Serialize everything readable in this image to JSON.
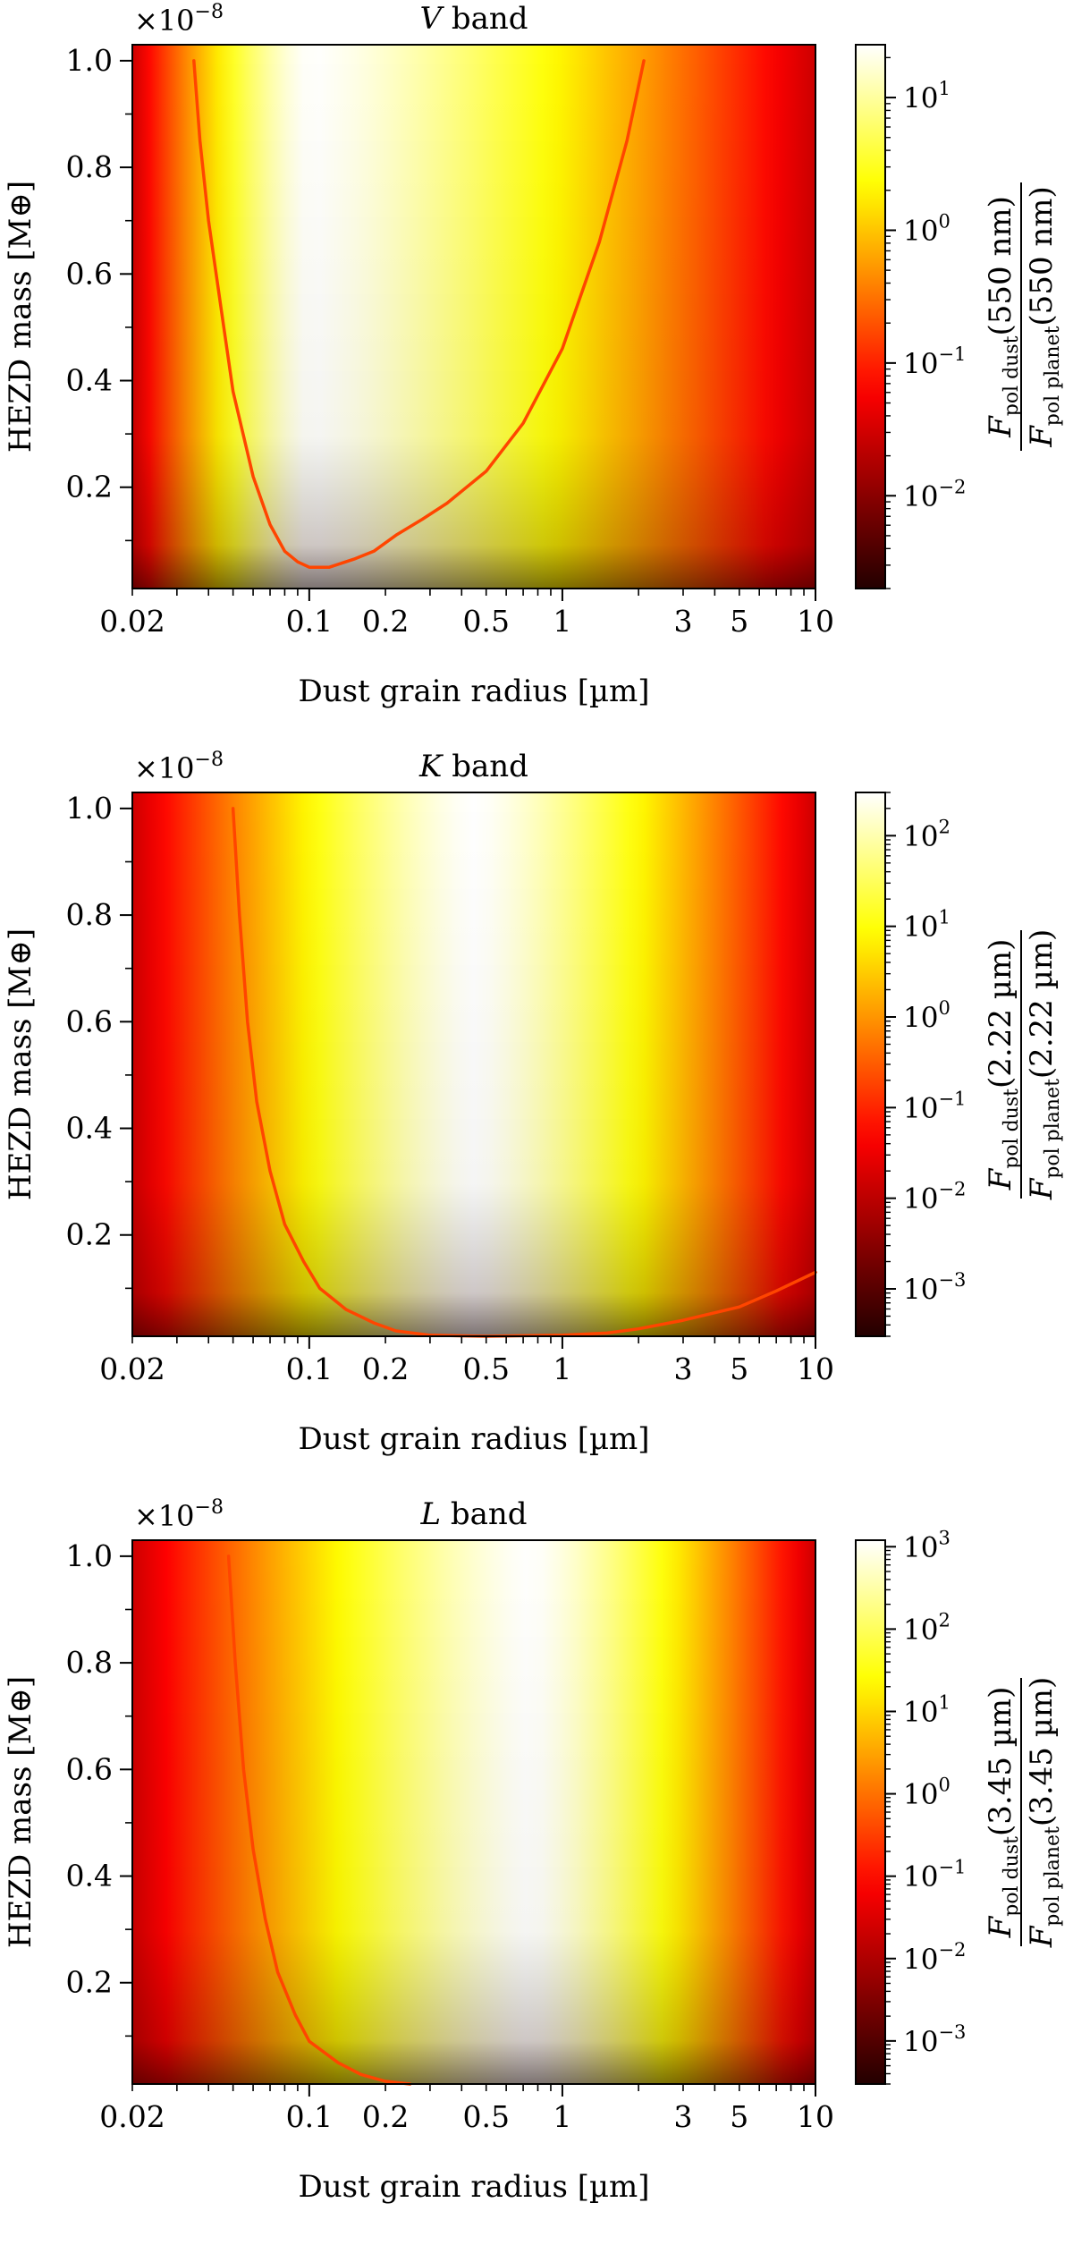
{
  "chart_data": [
    {
      "type": "heatmap",
      "title": "V band",
      "title_italic_part": "V",
      "title_rest": "band",
      "xlabel": "Dust grain radius [µm]",
      "ylabel": "HEZD mass [M⊕]",
      "y_multiplier_label": "×10",
      "y_multiplier_exponent": "−8",
      "x_scale": "log",
      "xlim": [
        0.02,
        10
      ],
      "ylim": [
        0.01,
        1.03
      ],
      "x_ticks": [
        0.02,
        0.1,
        0.2,
        0.5,
        1,
        3,
        5,
        10
      ],
      "x_tick_labels": [
        "0.02",
        "0.1",
        "0.2",
        "0.5",
        "1",
        "3",
        "5",
        "10"
      ],
      "y_ticks": [
        0.2,
        0.4,
        0.6,
        0.8,
        1.0
      ],
      "y_tick_labels": [
        "0.2",
        "0.4",
        "0.6",
        "0.8",
        "1.0"
      ],
      "colorscale": "hot",
      "color_scale": "log",
      "cbar_range": [
        0.002,
        25
      ],
      "cbar_ticks": [
        0.01,
        0.1,
        1,
        10
      ],
      "cbar_tick_exponents": [
        "−2",
        "−1",
        "0",
        "1"
      ],
      "cbar_label_wavelength": "(550 nm)",
      "peak_radius": 0.1,
      "contour_color": "#ff4500",
      "contour": [
        {
          "x": 0.035,
          "y": 1.0
        },
        {
          "x": 0.037,
          "y": 0.85
        },
        {
          "x": 0.04,
          "y": 0.7
        },
        {
          "x": 0.045,
          "y": 0.53
        },
        {
          "x": 0.05,
          "y": 0.38
        },
        {
          "x": 0.06,
          "y": 0.22
        },
        {
          "x": 0.07,
          "y": 0.13
        },
        {
          "x": 0.08,
          "y": 0.08
        },
        {
          "x": 0.09,
          "y": 0.06
        },
        {
          "x": 0.1,
          "y": 0.05
        },
        {
          "x": 0.12,
          "y": 0.05
        },
        {
          "x": 0.15,
          "y": 0.065
        },
        {
          "x": 0.18,
          "y": 0.08
        },
        {
          "x": 0.22,
          "y": 0.11
        },
        {
          "x": 0.28,
          "y": 0.14
        },
        {
          "x": 0.35,
          "y": 0.17
        },
        {
          "x": 0.5,
          "y": 0.23
        },
        {
          "x": 0.7,
          "y": 0.32
        },
        {
          "x": 1.0,
          "y": 0.46
        },
        {
          "x": 1.4,
          "y": 0.66
        },
        {
          "x": 1.8,
          "y": 0.85
        },
        {
          "x": 2.1,
          "y": 1.0
        }
      ]
    },
    {
      "type": "heatmap",
      "title": "K band",
      "title_italic_part": "K",
      "title_rest": "band",
      "xlabel": "Dust grain radius [µm]",
      "ylabel": "HEZD mass [M⊕]",
      "y_multiplier_label": "×10",
      "y_multiplier_exponent": "−8",
      "x_scale": "log",
      "xlim": [
        0.02,
        10
      ],
      "ylim": [
        0.01,
        1.03
      ],
      "x_ticks": [
        0.02,
        0.1,
        0.2,
        0.5,
        1,
        3,
        5,
        10
      ],
      "x_tick_labels": [
        "0.02",
        "0.1",
        "0.2",
        "0.5",
        "1",
        "3",
        "5",
        "10"
      ],
      "y_ticks": [
        0.2,
        0.4,
        0.6,
        0.8,
        1.0
      ],
      "y_tick_labels": [
        "0.2",
        "0.4",
        "0.6",
        "0.8",
        "1.0"
      ],
      "colorscale": "hot",
      "color_scale": "log",
      "cbar_range": [
        0.0003,
        300
      ],
      "cbar_ticks": [
        0.001,
        0.01,
        0.1,
        1,
        10,
        100
      ],
      "cbar_tick_exponents": [
        "−3",
        "−2",
        "−1",
        "0",
        "1",
        "2"
      ],
      "cbar_label_wavelength": "(2.22 µm)",
      "peak_radius": 0.45,
      "contour_color": "#ff4500",
      "contour": [
        {
          "x": 0.05,
          "y": 1.0
        },
        {
          "x": 0.053,
          "y": 0.8
        },
        {
          "x": 0.057,
          "y": 0.6
        },
        {
          "x": 0.062,
          "y": 0.45
        },
        {
          "x": 0.07,
          "y": 0.32
        },
        {
          "x": 0.08,
          "y": 0.22
        },
        {
          "x": 0.095,
          "y": 0.15
        },
        {
          "x": 0.11,
          "y": 0.1
        },
        {
          "x": 0.14,
          "y": 0.06
        },
        {
          "x": 0.18,
          "y": 0.035
        },
        {
          "x": 0.22,
          "y": 0.02
        },
        {
          "x": 0.3,
          "y": 0.012
        },
        {
          "x": 0.5,
          "y": 0.01
        },
        {
          "x": 1.0,
          "y": 0.012
        },
        {
          "x": 1.5,
          "y": 0.016
        },
        {
          "x": 2.0,
          "y": 0.024
        },
        {
          "x": 3.0,
          "y": 0.04
        },
        {
          "x": 5.0,
          "y": 0.065
        },
        {
          "x": 7.0,
          "y": 0.095
        },
        {
          "x": 10.0,
          "y": 0.13
        }
      ]
    },
    {
      "type": "heatmap",
      "title": "L band",
      "title_italic_part": "L",
      "title_rest": "band",
      "xlabel": "Dust grain radius [µm]",
      "ylabel": "HEZD mass [M⊕]",
      "y_multiplier_label": "×10",
      "y_multiplier_exponent": "−8",
      "x_scale": "log",
      "xlim": [
        0.02,
        10
      ],
      "ylim": [
        0.01,
        1.03
      ],
      "x_ticks": [
        0.02,
        0.1,
        0.2,
        0.5,
        1,
        3,
        5,
        10
      ],
      "x_tick_labels": [
        "0.02",
        "0.1",
        "0.2",
        "0.5",
        "1",
        "3",
        "5",
        "10"
      ],
      "y_ticks": [
        0.2,
        0.4,
        0.6,
        0.8,
        1.0
      ],
      "y_tick_labels": [
        "0.2",
        "0.4",
        "0.6",
        "0.8",
        "1.0"
      ],
      "colorscale": "hot",
      "color_scale": "log",
      "cbar_range": [
        0.0003,
        1200
      ],
      "cbar_ticks": [
        0.001,
        0.01,
        0.1,
        1,
        10,
        100,
        1000
      ],
      "cbar_tick_exponents": [
        "−3",
        "−2",
        "−1",
        "0",
        "1",
        "2",
        "3"
      ],
      "cbar_label_wavelength": "(3.45 µm)",
      "peak_radius": 0.75,
      "contour_color": "#ff4500",
      "contour": [
        {
          "x": 0.048,
          "y": 1.0
        },
        {
          "x": 0.051,
          "y": 0.8
        },
        {
          "x": 0.055,
          "y": 0.6
        },
        {
          "x": 0.06,
          "y": 0.45
        },
        {
          "x": 0.067,
          "y": 0.32
        },
        {
          "x": 0.075,
          "y": 0.22
        },
        {
          "x": 0.088,
          "y": 0.14
        },
        {
          "x": 0.1,
          "y": 0.09
        },
        {
          "x": 0.13,
          "y": 0.05
        },
        {
          "x": 0.16,
          "y": 0.028
        },
        {
          "x": 0.2,
          "y": 0.015
        },
        {
          "x": 0.25,
          "y": 0.01
        }
      ]
    }
  ]
}
